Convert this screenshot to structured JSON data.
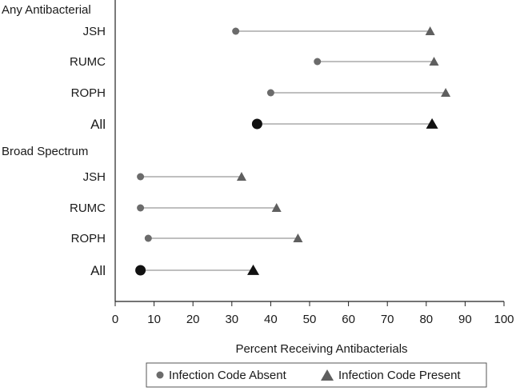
{
  "chart_data": {
    "type": "dumbbell",
    "xlabel": "Percent Receiving Antibacterials",
    "xlim": [
      0,
      100
    ],
    "xticks": [
      0,
      10,
      20,
      30,
      40,
      50,
      60,
      70,
      80,
      90,
      100
    ],
    "legend": {
      "placement": "bottom-center",
      "entries": [
        {
          "name": "Infection Code Absent",
          "marker": "circle"
        },
        {
          "name": "Infection Code Present",
          "marker": "triangle"
        }
      ]
    },
    "colors": {
      "absent": "#6b6b6b",
      "present": "#5f5f5f",
      "all": "#111111",
      "line": "#aaaaaa"
    },
    "groups": [
      {
        "label": "Any Antibacterial",
        "rows": [
          {
            "label": "JSH",
            "absent": 31,
            "present": 81,
            "emphasis": false
          },
          {
            "label": "RUMC",
            "absent": 52,
            "present": 82,
            "emphasis": false
          },
          {
            "label": "ROPH",
            "absent": 40,
            "present": 85,
            "emphasis": false
          },
          {
            "label": "All",
            "absent": 36.5,
            "present": 81.5,
            "emphasis": true
          }
        ]
      },
      {
        "label": "Broad Spectrum",
        "rows": [
          {
            "label": "JSH",
            "absent": 6.5,
            "present": 32.5,
            "emphasis": false
          },
          {
            "label": "RUMC",
            "absent": 6.5,
            "present": 41.5,
            "emphasis": false
          },
          {
            "label": "ROPH",
            "absent": 8.5,
            "present": 47,
            "emphasis": false
          },
          {
            "label": "All",
            "absent": 6.5,
            "present": 35.5,
            "emphasis": true
          }
        ]
      }
    ]
  }
}
